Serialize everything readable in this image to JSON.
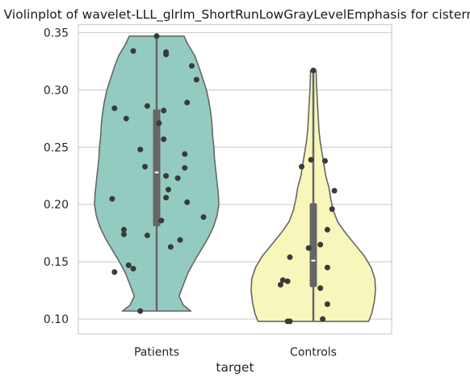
{
  "chart_data": {
    "type": "violin",
    "title": "Violinplot of wavelet-LLL_glrlm_ShortRunLowGrayLevelEmphasis for cistern",
    "xlabel": "target",
    "ylabel": "",
    "ylim": [
      0.087,
      0.357
    ],
    "yticks": [
      0.1,
      0.15,
      0.2,
      0.25,
      0.3,
      0.35
    ],
    "ytick_labels": [
      "0.10",
      "0.15",
      "0.20",
      "0.25",
      "0.30",
      "0.35"
    ],
    "grid": "horizontal",
    "categories": [
      "Patients",
      "Controls"
    ],
    "colors": {
      "Patients": "#94cbc0",
      "Controls": "#f8f7bb",
      "outline": "#666666",
      "points": "#3a3a3a",
      "box": "#666666",
      "median": "#ffffff",
      "grid": "#d0d0d0",
      "frame": "#cfcfcf"
    },
    "series": [
      {
        "category": "Patients",
        "min": 0.107,
        "max": 0.347,
        "q1": 0.181,
        "median": 0.228,
        "q3": 0.283,
        "density": [
          [
            0.107,
            0.55
          ],
          [
            0.112,
            0.43
          ],
          [
            0.12,
            0.36
          ],
          [
            0.13,
            0.43
          ],
          [
            0.14,
            0.5
          ],
          [
            0.15,
            0.6
          ],
          [
            0.16,
            0.71
          ],
          [
            0.17,
            0.82
          ],
          [
            0.18,
            0.91
          ],
          [
            0.19,
            0.97
          ],
          [
            0.2,
            1.0
          ],
          [
            0.21,
            0.99
          ],
          [
            0.22,
            0.97
          ],
          [
            0.23,
            0.95
          ],
          [
            0.24,
            0.93
          ],
          [
            0.25,
            0.92
          ],
          [
            0.26,
            0.9
          ],
          [
            0.27,
            0.89
          ],
          [
            0.28,
            0.87
          ],
          [
            0.29,
            0.84
          ],
          [
            0.3,
            0.8
          ],
          [
            0.31,
            0.74
          ],
          [
            0.32,
            0.68
          ],
          [
            0.33,
            0.61
          ],
          [
            0.34,
            0.5
          ],
          [
            0.347,
            0.44
          ]
        ],
        "points": [
          [
            0.0,
            0.347
          ],
          [
            -0.1,
            0.334
          ],
          [
            0.04,
            0.333
          ],
          [
            0.04,
            0.331
          ],
          [
            0.15,
            0.321
          ],
          [
            0.17,
            0.309
          ],
          [
            0.13,
            0.289
          ],
          [
            -0.04,
            0.286
          ],
          [
            -0.18,
            0.284
          ],
          [
            0.03,
            0.282
          ],
          [
            -0.13,
            0.275
          ],
          [
            0.01,
            0.271
          ],
          [
            0.03,
            0.257
          ],
          [
            -0.07,
            0.248
          ],
          [
            0.12,
            0.244
          ],
          [
            -0.05,
            0.233
          ],
          [
            0.12,
            0.232
          ],
          [
            0.04,
            0.225
          ],
          [
            0.09,
            0.223
          ],
          [
            0.05,
            0.213
          ],
          [
            0.04,
            0.206
          ],
          [
            -0.19,
            0.205
          ],
          [
            0.13,
            0.202
          ],
          [
            0.02,
            0.186
          ],
          [
            0.2,
            0.189
          ],
          [
            -0.14,
            0.178
          ],
          [
            -0.14,
            0.174
          ],
          [
            -0.04,
            0.173
          ],
          [
            0.1,
            0.169
          ],
          [
            0.06,
            0.163
          ],
          [
            -0.12,
            0.147
          ],
          [
            -0.1,
            0.144
          ],
          [
            -0.18,
            0.141
          ],
          [
            -0.07,
            0.107
          ]
        ]
      },
      {
        "category": "Controls",
        "min": 0.098,
        "max": 0.317,
        "q1": 0.128,
        "median": 0.151,
        "q3": 0.201,
        "density": [
          [
            0.098,
            0.89
          ],
          [
            0.105,
            0.94
          ],
          [
            0.115,
            0.98
          ],
          [
            0.125,
            1.0
          ],
          [
            0.135,
            0.99
          ],
          [
            0.145,
            0.93
          ],
          [
            0.155,
            0.82
          ],
          [
            0.165,
            0.67
          ],
          [
            0.175,
            0.52
          ],
          [
            0.185,
            0.39
          ],
          [
            0.195,
            0.32
          ],
          [
            0.205,
            0.28
          ],
          [
            0.215,
            0.25
          ],
          [
            0.225,
            0.2
          ],
          [
            0.235,
            0.17
          ],
          [
            0.245,
            0.14
          ],
          [
            0.255,
            0.11
          ],
          [
            0.265,
            0.09
          ],
          [
            0.275,
            0.08
          ],
          [
            0.285,
            0.07
          ],
          [
            0.295,
            0.06
          ],
          [
            0.305,
            0.05
          ],
          [
            0.317,
            0.045
          ]
        ],
        "points": [
          [
            0.0,
            0.317
          ],
          [
            -0.01,
            0.239
          ],
          [
            0.05,
            0.238
          ],
          [
            -0.05,
            0.233
          ],
          [
            0.09,
            0.212
          ],
          [
            0.08,
            0.196
          ],
          [
            0.06,
            0.178
          ],
          [
            0.03,
            0.165
          ],
          [
            -0.02,
            0.162
          ],
          [
            -0.1,
            0.154
          ],
          [
            0.06,
            0.145
          ],
          [
            -0.13,
            0.134
          ],
          [
            -0.11,
            0.133
          ],
          [
            -0.14,
            0.13
          ],
          [
            0.03,
            0.127
          ],
          [
            0.06,
            0.113
          ],
          [
            0.04,
            0.1
          ],
          [
            -0.1,
            0.098
          ],
          [
            -0.11,
            0.098
          ]
        ]
      }
    ]
  }
}
